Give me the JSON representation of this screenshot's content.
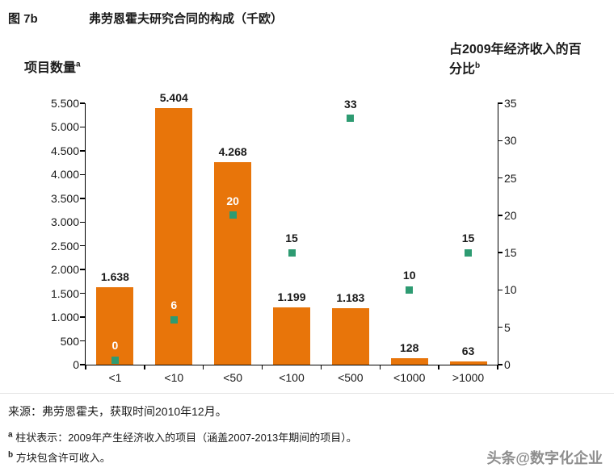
{
  "header": {
    "figure_label": "图 7b",
    "title": "弗劳恩霍夫研究合同的构成（千欧）"
  },
  "axes": {
    "left_title": "项目数量",
    "left_title_sup": "a",
    "right_title_line1": "占2009年经济收入的百",
    "right_title_line2": "分比",
    "right_title_sup": "b"
  },
  "chart_data": {
    "type": "bar",
    "title": "弗劳恩霍夫研究合同的构成（千欧）",
    "categories": [
      "<1",
      "<10",
      "<50",
      "<100",
      "<500",
      "<1000",
      ">1000"
    ],
    "series": [
      {
        "name": "项目数量（柱）",
        "type": "bar",
        "axis": "left",
        "values": [
          1638,
          5404,
          4268,
          1199,
          1183,
          128,
          63
        ],
        "labels": [
          "1.638",
          "5.404",
          "4.268",
          "1.199",
          "1.183",
          "128",
          "63"
        ],
        "color": "#E8750A"
      },
      {
        "name": "占2009年经济收入的百分比（方块）",
        "type": "scatter",
        "axis": "right",
        "values": [
          0,
          6,
          20,
          15,
          33,
          10,
          15
        ],
        "labels": [
          "0",
          "6",
          "20",
          "15",
          "33",
          "10",
          "15"
        ],
        "color": "#2E9B72"
      }
    ],
    "left_axis": {
      "min": 0,
      "max": 5500,
      "step": 500,
      "tick_labels": [
        "0",
        "500",
        "1.000",
        "1.500",
        "2.000",
        "2.500",
        "3.000",
        "3.500",
        "4.000",
        "4.500",
        "5.000",
        "5.500"
      ]
    },
    "right_axis": {
      "min": 0,
      "max": 35,
      "step": 5,
      "tick_labels": [
        "0",
        "5",
        "10",
        "15",
        "20",
        "25",
        "30",
        "35"
      ]
    },
    "grid": false,
    "legend": "none"
  },
  "footer": {
    "source": "来源：弗劳恩霍夫，获取时间2010年12月。",
    "note_a_sup": "a",
    "note_a": "柱状表示：2009年产生经济收入的项目（涵盖2007-2013年期间的项目）。",
    "note_b_sup": "b",
    "note_b": "方块包含许可收入。",
    "watermark": "头条@数字化企业"
  }
}
